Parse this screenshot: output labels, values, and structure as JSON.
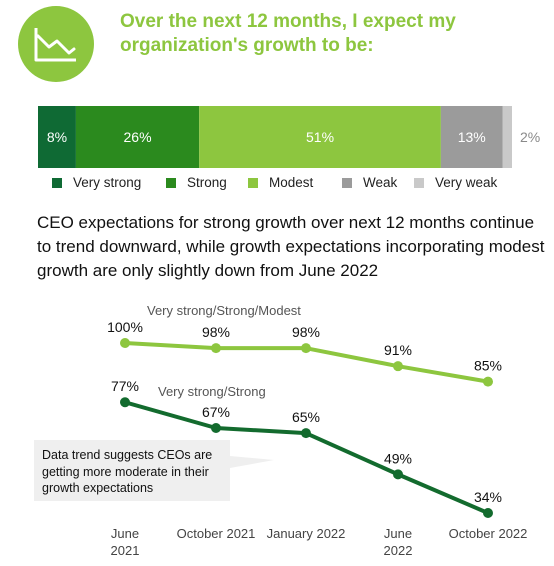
{
  "colors": {
    "very_strong": "#0f6a34",
    "strong": "#2b8a1e",
    "modest": "#8dc63f",
    "weak": "#9b9b9b",
    "very_weak": "#c9c9c9",
    "accent": "#8dc63f",
    "trend_upper": "#8dc63f",
    "trend_lower": "#136b2e",
    "callout_bg": "#efefef"
  },
  "header": {
    "icon": "declining-chart-icon",
    "title": "Over the next 12 months, I expect my organization's growth to be:"
  },
  "subtitle": "CEO expectations for strong growth over next 12 months continue to trend downward, while growth expectations incorporating modest growth are only slightly down from June 2022",
  "callout": "Data trend suggests CEOs are getting more moderate in their growth expectations",
  "chart_data": [
    {
      "type": "bar",
      "stacked": true,
      "orientation": "horizontal",
      "title": "Over the next 12 months, I expect my organization's growth to be:",
      "legend_position": "bottom",
      "series": [
        {
          "name": "Very strong",
          "value": 8,
          "label": "8%"
        },
        {
          "name": "Strong",
          "value": 26,
          "label": "26%"
        },
        {
          "name": "Modest",
          "value": 51,
          "label": "51%"
        },
        {
          "name": "Weak",
          "value": 13,
          "label": "13%"
        },
        {
          "name": "Very weak",
          "value": 2,
          "label": "2%"
        }
      ]
    },
    {
      "type": "line",
      "title": "CEO expectations for strong growth over next 12 months continue to trend downward, while growth expectations incorporating modest growth are only slightly down from June 2022",
      "categories": [
        {
          "line1": "June",
          "line2": "2021"
        },
        {
          "line1": "October 2021",
          "line2": ""
        },
        {
          "line1": "January 2022",
          "line2": ""
        },
        {
          "line1": "June",
          "line2": "2022"
        },
        {
          "line1": "October 2022",
          "line2": ""
        }
      ],
      "grid": false,
      "series": [
        {
          "name": "Very strong/Strong/Modest",
          "values": [
            100,
            98,
            98,
            91,
            85
          ],
          "labels": [
            "100%",
            "98%",
            "98%",
            "91%",
            "85%"
          ]
        },
        {
          "name": "Very strong/Strong",
          "values": [
            77,
            67,
            65,
            49,
            34
          ],
          "labels": [
            "77%",
            "67%",
            "65%",
            "49%",
            "34%"
          ]
        }
      ]
    }
  ]
}
